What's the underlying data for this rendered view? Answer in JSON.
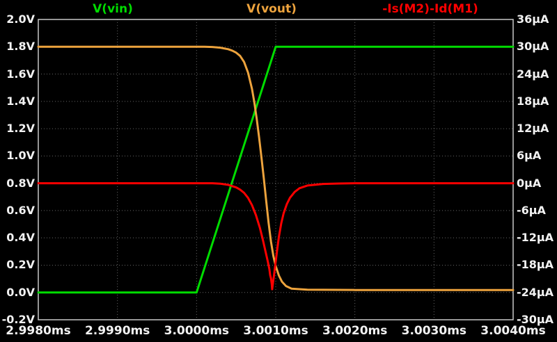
{
  "chart_data": {
    "type": "line",
    "description": "LTspice-style transient waveform plot of a CMOS inverter switching event",
    "background": "#000000",
    "grid_color": "#666666",
    "frame_color": "#c8c8c8",
    "text_color": "#f2f2f2",
    "x_axis": {
      "unit": "ms",
      "min": 2.998,
      "max": 3.004,
      "ticks": [
        "2.9980ms",
        "2.9990ms",
        "3.0000ms",
        "3.0010ms",
        "3.0020ms",
        "3.0030ms",
        "3.0040ms"
      ],
      "tick_values": [
        2.998,
        2.999,
        3.0,
        3.001,
        3.002,
        3.003,
        3.004
      ]
    },
    "y_axis_left": {
      "unit": "V",
      "min": -0.2,
      "max": 2.0,
      "ticks": [
        "2.0V",
        "1.8V",
        "1.6V",
        "1.4V",
        "1.2V",
        "1.0V",
        "0.8V",
        "0.6V",
        "0.4V",
        "0.2V",
        "0.0V",
        "-0.2V"
      ],
      "tick_values": [
        2.0,
        1.8,
        1.6,
        1.4,
        1.2,
        1.0,
        0.8,
        0.6,
        0.4,
        0.2,
        0.0,
        -0.2
      ]
    },
    "y_axis_right": {
      "unit": "µA",
      "min": -30,
      "max": 36,
      "ticks": [
        "36µA",
        "30µA",
        "24µA",
        "18µA",
        "12µA",
        "6µA",
        "0µA",
        "-6µA",
        "-12µA",
        "-18µA",
        "-24µA",
        "-30µA"
      ],
      "tick_values": [
        36,
        30,
        24,
        18,
        12,
        6,
        0,
        -6,
        -12,
        -18,
        -24,
        -30
      ]
    },
    "series": [
      {
        "name": "V(vin)",
        "color": "#00dc00",
        "axis": "left",
        "points": [
          [
            2.998,
            0.0
          ],
          [
            3.0,
            0.0
          ],
          [
            3.001,
            1.8
          ],
          [
            3.004,
            1.8
          ]
        ]
      },
      {
        "name": "V(vout)",
        "color": "#eda33d",
        "axis": "left",
        "points": [
          [
            2.998,
            1.8
          ],
          [
            3.0001,
            1.8
          ],
          [
            3.0002,
            1.798
          ],
          [
            3.0003,
            1.793
          ],
          [
            3.0004,
            1.782
          ],
          [
            3.00045,
            1.772
          ],
          [
            3.0005,
            1.757
          ],
          [
            3.00055,
            1.733
          ],
          [
            3.0006,
            1.689
          ],
          [
            3.00065,
            1.611
          ],
          [
            3.0007,
            1.492
          ],
          [
            3.00073,
            1.392
          ],
          [
            3.00076,
            1.272
          ],
          [
            3.00079,
            1.136
          ],
          [
            3.00082,
            0.988
          ],
          [
            3.00085,
            0.834
          ],
          [
            3.00088,
            0.669
          ],
          [
            3.00091,
            0.51
          ],
          [
            3.00094,
            0.373
          ],
          [
            3.00097,
            0.268
          ],
          [
            3.001,
            0.193
          ],
          [
            3.00104,
            0.124
          ],
          [
            3.00108,
            0.078
          ],
          [
            3.00113,
            0.047
          ],
          [
            3.0012,
            0.028
          ],
          [
            3.0014,
            0.02
          ],
          [
            3.002,
            0.018
          ],
          [
            3.004,
            0.018
          ]
        ]
      },
      {
        "name": "-Is(M2)-Id(M1)",
        "color": "#ff0000",
        "axis": "right",
        "points": [
          [
            2.998,
            0
          ],
          [
            3.0002,
            0
          ],
          [
            3.0003,
            -0.1
          ],
          [
            3.0004,
            -0.35
          ],
          [
            3.0005,
            -0.9
          ],
          [
            3.00055,
            -1.4
          ],
          [
            3.0006,
            -2.1
          ],
          [
            3.00065,
            -3.2
          ],
          [
            3.0007,
            -4.8
          ],
          [
            3.00075,
            -7.0
          ],
          [
            3.0008,
            -9.8
          ],
          [
            3.00084,
            -12.6
          ],
          [
            3.00087,
            -14.9
          ],
          [
            3.0009,
            -17.2
          ],
          [
            3.00092,
            -18.9
          ],
          [
            3.00093,
            -20.2
          ],
          [
            3.00094,
            -20.9
          ],
          [
            3.00095,
            -22.2
          ],
          [
            3.000955,
            -23.3
          ],
          [
            3.00096,
            -22.6
          ],
          [
            3.00097,
            -21.3
          ],
          [
            3.00098,
            -20.0
          ],
          [
            3.00099,
            -18.6
          ],
          [
            3.001,
            -17.2
          ],
          [
            3.00102,
            -14.4
          ],
          [
            3.00104,
            -11.8
          ],
          [
            3.00107,
            -8.8
          ],
          [
            3.0011,
            -6.6
          ],
          [
            3.00114,
            -4.6
          ],
          [
            3.00118,
            -3.2
          ],
          [
            3.00124,
            -1.9
          ],
          [
            3.0013,
            -1.1
          ],
          [
            3.0014,
            -0.5
          ],
          [
            3.0016,
            -0.15
          ],
          [
            3.0018,
            -0.05
          ],
          [
            3.002,
            0
          ],
          [
            3.004,
            0
          ]
        ]
      }
    ],
    "legend_labels": [
      "V(vin)",
      "V(vout)",
      "-Is(M2)-Id(M1)"
    ]
  }
}
